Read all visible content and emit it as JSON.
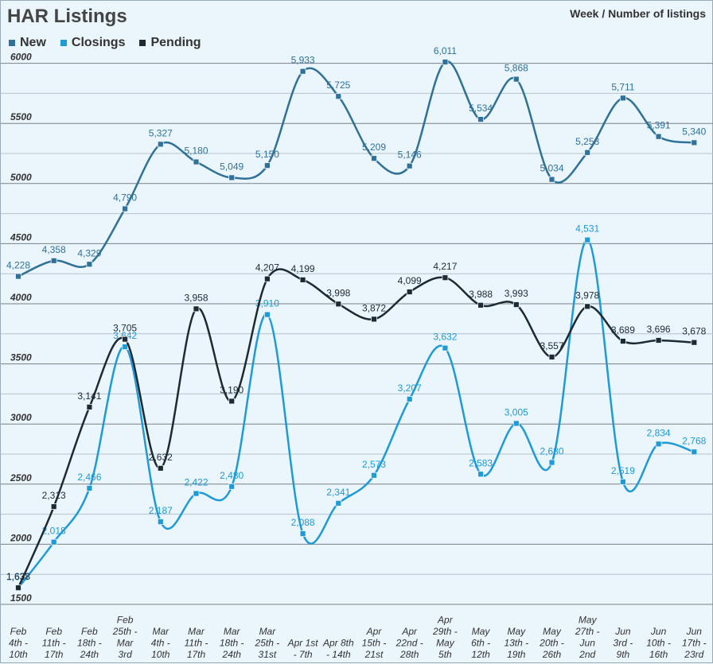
{
  "chart_data": {
    "type": "line",
    "title": "HAR Listings",
    "subtitle": "Week / Number of listings",
    "xlabel": "",
    "ylabel": "",
    "ylim": [
      1500,
      6000
    ],
    "y_ticks": [
      1500,
      2000,
      2500,
      3000,
      3500,
      4000,
      4500,
      5000,
      5500,
      6000
    ],
    "grid": true,
    "legend": "top-left",
    "categories": [
      [
        "Feb",
        "4th -",
        "10th"
      ],
      [
        "Feb",
        "11th -",
        "17th"
      ],
      [
        "Feb",
        "18th -",
        "24th"
      ],
      [
        "Feb",
        "25th -",
        "Mar",
        "3rd"
      ],
      [
        "Mar",
        "4th -",
        "10th"
      ],
      [
        "Mar",
        "11th -",
        "17th"
      ],
      [
        "Mar",
        "18th -",
        "24th"
      ],
      [
        "Mar",
        "25th -",
        "31st"
      ],
      [
        "Apr 1st",
        "- 7th"
      ],
      [
        "Apr 8th",
        "- 14th"
      ],
      [
        "Apr",
        "15th -",
        "21st"
      ],
      [
        "Apr",
        "22nd -",
        "28th"
      ],
      [
        "Apr",
        "29th -",
        "May",
        "5th"
      ],
      [
        "May",
        "6th -",
        "12th"
      ],
      [
        "May",
        "13th -",
        "19th"
      ],
      [
        "May",
        "20th -",
        "26th"
      ],
      [
        "May",
        "27th -",
        "Jun",
        "2nd"
      ],
      [
        "Jun",
        "3rd -",
        "9th"
      ],
      [
        "Jun",
        "10th -",
        "16th"
      ],
      [
        "Jun",
        "17th -",
        "23rd"
      ]
    ],
    "series": [
      {
        "name": "New",
        "color": "#2f7197",
        "values": [
          4228,
          4358,
          4329,
          4790,
          5327,
          5180,
          5049,
          5150,
          5933,
          5725,
          5209,
          5146,
          6011,
          5534,
          5868,
          5034,
          5258,
          5711,
          5391,
          5340
        ],
        "labels": [
          "4,228",
          "4,358",
          "4,329",
          "4,790",
          "5,327",
          "5,180",
          "5,049",
          "5,150",
          "5,933",
          "5,725",
          "5,209",
          "5,146",
          "6,011",
          "5,534",
          "5,868",
          "5,034",
          "5,258",
          "5,711",
          "5,391",
          "5,340"
        ]
      },
      {
        "name": "Closings",
        "color": "#1e9ad6",
        "values": [
          1637,
          2018,
          2466,
          3642,
          2187,
          2422,
          2480,
          3910,
          2088,
          2341,
          2573,
          3207,
          3632,
          2583,
          3005,
          2680,
          4531,
          2519,
          2834,
          2768
        ],
        "labels": [
          "1,637",
          "2,018",
          "2,466",
          "3,642",
          "2,187",
          "2,422",
          "2,480",
          "3,910",
          "2,088",
          "2,341",
          "2,573",
          "3,207",
          "3,632",
          "2,583",
          "3,005",
          "2,680",
          "4,531",
          "2,519",
          "2,834",
          "2,768"
        ]
      },
      {
        "name": "Pending",
        "color": "#1e2a33",
        "values": [
          1638,
          2313,
          3141,
          3705,
          2632,
          3958,
          3190,
          4207,
          4199,
          3998,
          3872,
          4099,
          4217,
          3988,
          3993,
          3557,
          3978,
          3689,
          3696,
          3678
        ],
        "labels": [
          "1,638",
          "2,313",
          "3,141",
          "3,705",
          "2,632",
          "3,958",
          "3,190",
          "4,207",
          "4,199",
          "3,998",
          "3,872",
          "4,099",
          "4,217",
          "3,988",
          "3,993",
          "3,557",
          "3,978",
          "3,689",
          "3,696",
          "3,678"
        ]
      }
    ]
  }
}
